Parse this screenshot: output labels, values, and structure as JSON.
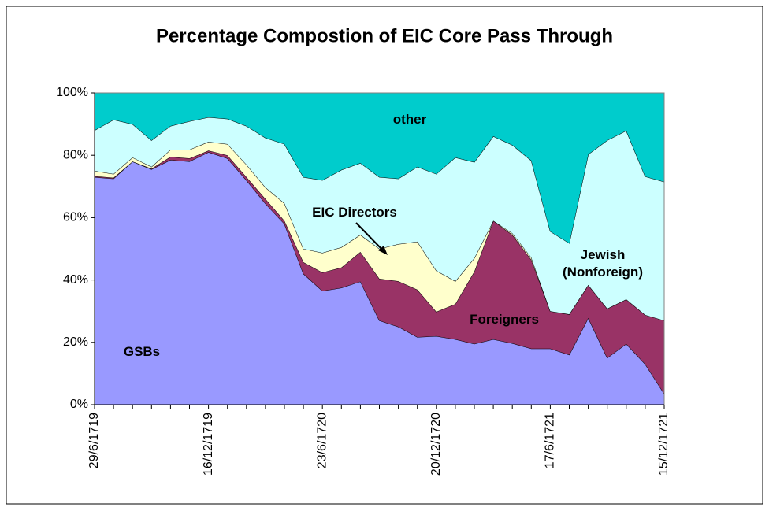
{
  "chart_data": {
    "type": "stacked-area",
    "title": "Percentage Compostion of EIC Core Pass Through",
    "categories": [
      "29/6/1719",
      null,
      null,
      null,
      null,
      null,
      "16/12/1719",
      null,
      null,
      null,
      null,
      null,
      "23/6/1720",
      null,
      null,
      null,
      null,
      null,
      "20/12/1720",
      null,
      null,
      null,
      null,
      null,
      "17/6/1721",
      null,
      null,
      null,
      null,
      null,
      "15/12/1721"
    ],
    "series": [
      {
        "name": "GSBs",
        "color": "#9999ff",
        "values": [
          73,
          72.5,
          78,
          75.5,
          78.5,
          78,
          81,
          79,
          72,
          64.5,
          58,
          42,
          36.5,
          37.5,
          39.5,
          27,
          25,
          21.7,
          22,
          21,
          19.5,
          21,
          19.7,
          18,
          18,
          16,
          27.8,
          15,
          19.5,
          13,
          3.5
        ]
      },
      {
        "name": "Foreigners",
        "color": "#993366",
        "values": [
          0.3,
          0.3,
          0,
          0.2,
          1,
          1,
          0.5,
          1,
          1,
          1.5,
          1,
          3.7,
          5.9,
          6.5,
          9.5,
          13.4,
          14.6,
          15.2,
          7.8,
          11.3,
          23.2,
          38,
          34.8,
          28.5,
          12,
          13,
          10.6,
          15.8,
          14.3,
          15.8,
          23.5
        ]
      },
      {
        "name": "EIC Directors",
        "color": "#ffffcc",
        "values": [
          1.7,
          1.2,
          1.3,
          0.6,
          2.3,
          2.8,
          2.8,
          3.6,
          4,
          3.7,
          5.6,
          4.3,
          6.3,
          6.5,
          5.5,
          9.6,
          11.9,
          15.4,
          13.2,
          7.3,
          4.3,
          0,
          0.5,
          0.7,
          0,
          0,
          0,
          0,
          0,
          0,
          0
        ]
      },
      {
        "name": "Jewish (Nonforeign)",
        "color": "#ccffff",
        "values": [
          13,
          17.4,
          10.7,
          8.5,
          7.6,
          9.1,
          7.9,
          8.1,
          12.4,
          15.9,
          19,
          23,
          23.3,
          24.8,
          23,
          23,
          21,
          24,
          31,
          39.7,
          30.8,
          27.1,
          28.3,
          31.1,
          25.6,
          22.8,
          41.9,
          54,
          54.1,
          44.4,
          44.5
        ]
      },
      {
        "name": "other",
        "color": "#00cccc",
        "values": [
          12,
          8.6,
          10,
          15.2,
          10.6,
          9.1,
          7.8,
          8.3,
          10.6,
          14.4,
          16.4,
          27,
          28,
          24.7,
          22.5,
          27,
          27.5,
          23.7,
          26,
          20.7,
          22.2,
          13.9,
          16.7,
          21.7,
          44.4,
          48.2,
          19.7,
          15.2,
          12.1,
          26.8,
          28.5
        ]
      }
    ],
    "ylim": [
      0,
      100
    ],
    "yticks": [
      {
        "value": 0,
        "label": "0%"
      },
      {
        "value": 20,
        "label": "20%"
      },
      {
        "value": 40,
        "label": "40%"
      },
      {
        "value": 60,
        "label": "60%"
      },
      {
        "value": 80,
        "label": "80%"
      },
      {
        "value": 100,
        "label": "100%"
      }
    ]
  }
}
